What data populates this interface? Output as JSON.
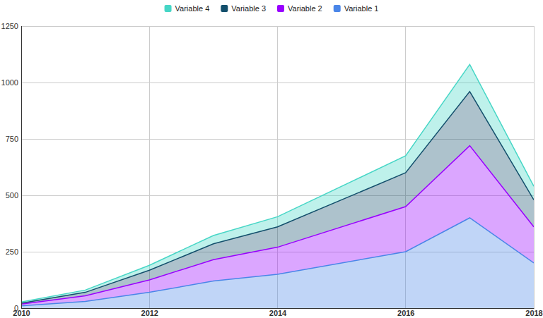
{
  "chart_data": {
    "type": "area",
    "stacked": true,
    "grid": true,
    "legend": "top",
    "x": [
      2010,
      2011,
      2012,
      2013,
      2014,
      2016,
      2017,
      2018
    ],
    "xlim": [
      2010,
      2018
    ],
    "xticks": [
      2010,
      2012,
      2014,
      2016,
      2018
    ],
    "ylim": [
      0,
      1250
    ],
    "yticks": [
      0,
      250,
      500,
      750,
      1000,
      1250
    ],
    "series": [
      {
        "name": "Variable 1",
        "color": "#4a86e8",
        "values": [
          10,
          30,
          70,
          120,
          150,
          250,
          400,
          200
        ]
      },
      {
        "name": "Variable 2",
        "color": "#9900ff",
        "values": [
          8,
          25,
          55,
          95,
          120,
          200,
          320,
          160
        ]
      },
      {
        "name": "Variable 3",
        "color": "#134f6c",
        "values": [
          4,
          15,
          43,
          70,
          90,
          150,
          240,
          120
        ]
      },
      {
        "name": "Variable 4",
        "color": "#46d6c6",
        "values": [
          5,
          10,
          22,
          37,
          45,
          75,
          120,
          60
        ]
      }
    ]
  }
}
